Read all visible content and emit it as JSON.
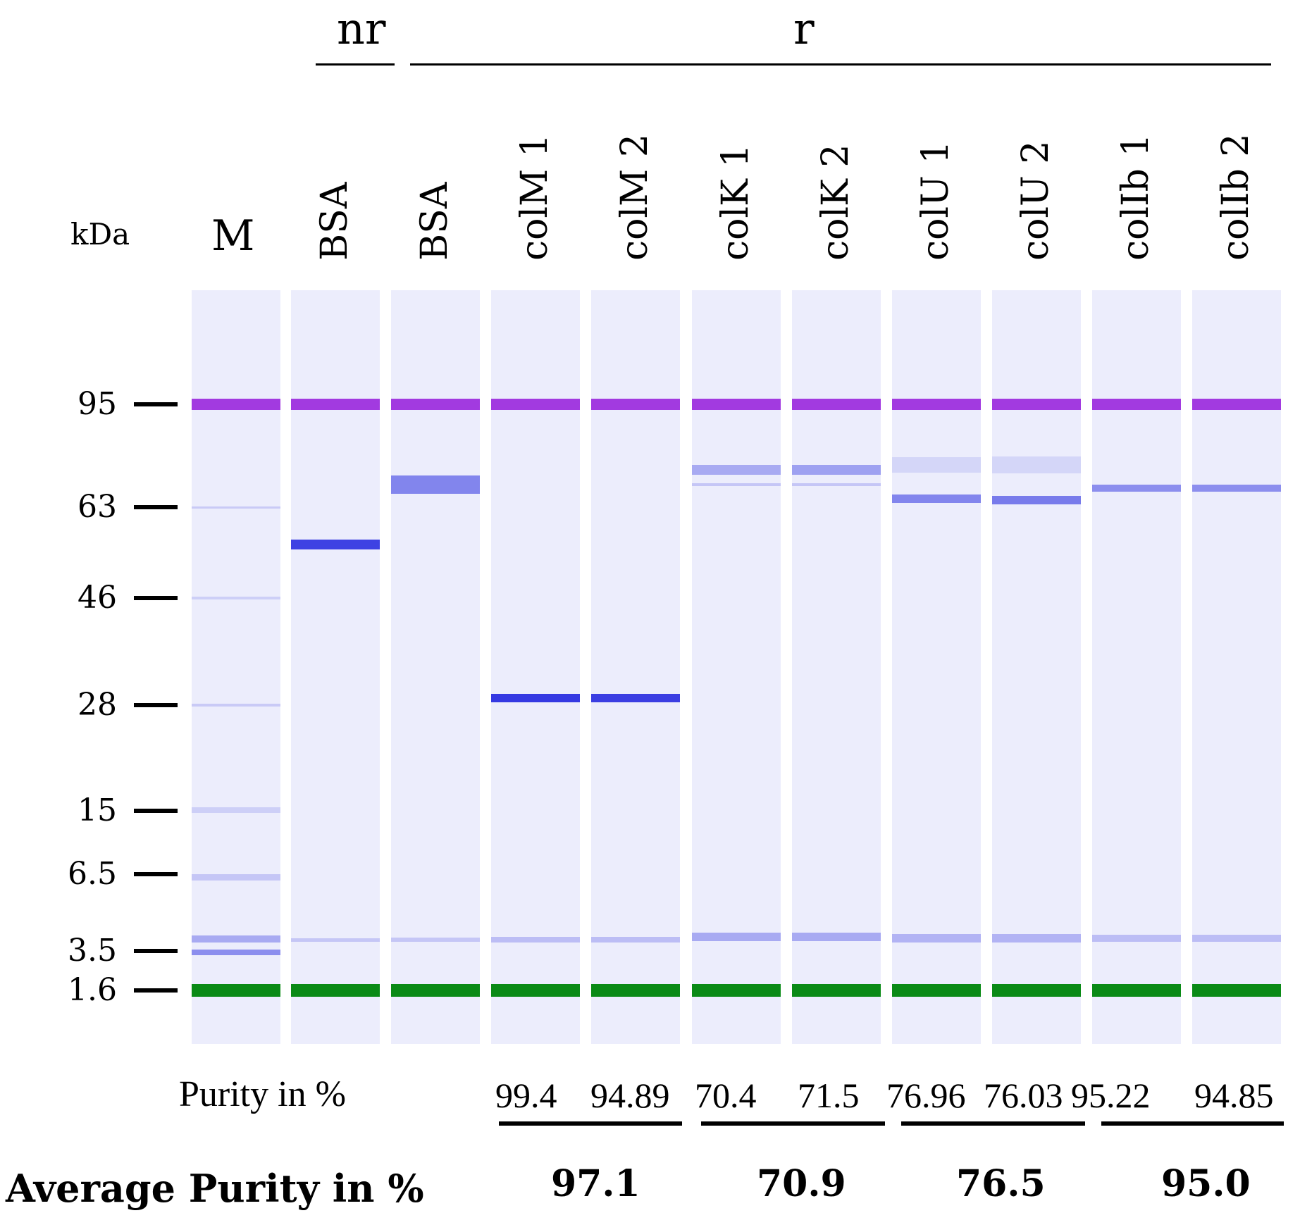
{
  "group_labels": {
    "nr": "nr",
    "r": "r"
  },
  "axis": {
    "unit": "kDa",
    "ticks": [
      "95",
      "63",
      "46",
      "28",
      "15",
      "6.5",
      "3.5",
      "1.6"
    ]
  },
  "lanes": [
    {
      "label": "M"
    },
    {
      "label": "BSA"
    },
    {
      "label": "BSA"
    },
    {
      "label": "colM 1"
    },
    {
      "label": "colM 2"
    },
    {
      "label": "colK 1"
    },
    {
      "label": "colK 2"
    },
    {
      "label": "colU 1"
    },
    {
      "label": "colU 2"
    },
    {
      "label": "colIb 1"
    },
    {
      "label": "colIb 2"
    }
  ],
  "purity": {
    "label": "Purity in %",
    "values": [
      "99.4",
      "94.89",
      "70.4",
      "71.5",
      "76.96",
      "76.03",
      "95.22",
      "94.85"
    ]
  },
  "average_purity": {
    "label": "Average Purity in %",
    "values": [
      "97.1",
      "70.9",
      "76.5",
      "95.0"
    ]
  },
  "colors": {
    "upper_marker": "#a23ae0",
    "lower_marker": "#0a8a16",
    "band": "#2b2fe0",
    "lane_bg": "#ecedfc"
  }
}
